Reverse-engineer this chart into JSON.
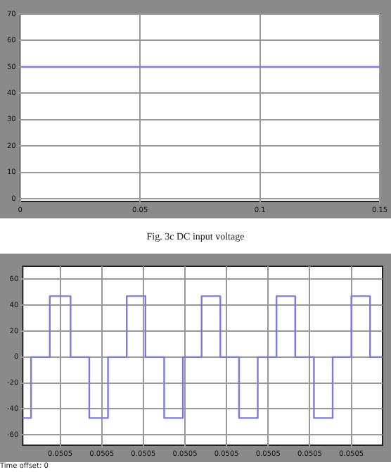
{
  "chart_data": [
    {
      "type": "line",
      "x": [
        0,
        0.15
      ],
      "xlim": [
        0,
        0.15
      ],
      "xticks": [
        0,
        0.05,
        0.1,
        0.15
      ],
      "ylim": [
        -1,
        70
      ],
      "yticks": [
        0,
        10,
        20,
        30,
        40,
        50,
        60,
        70
      ],
      "grid": true,
      "series": [
        {
          "color": "#7a7ae6",
          "values": [
            50,
            50
          ]
        }
      ],
      "annotations": [
        "Fig. 3c DC input voltage"
      ]
    },
    {
      "type": "step",
      "categories": [
        null,
        null,
        null,
        null,
        null,
        null,
        null,
        null,
        null,
        null,
        null,
        null,
        null,
        null,
        null,
        null,
        null,
        null,
        "0.0505",
        null,
        null,
        null,
        null,
        null,
        null,
        null,
        null,
        null,
        null,
        null,
        null,
        null,
        null,
        null,
        null,
        null,
        null,
        null,
        "0.0505",
        null,
        null,
        null,
        null,
        null,
        null,
        null,
        null,
        null,
        null,
        null,
        null,
        null,
        null,
        null,
        null,
        null,
        null,
        null,
        "0.0505",
        null,
        null,
        null,
        null,
        null,
        null,
        null,
        null,
        null,
        null,
        null,
        null,
        null,
        null,
        null,
        null,
        null,
        null,
        null,
        "0.0505",
        null,
        null,
        null,
        null,
        null,
        null,
        null,
        null,
        null,
        null,
        null,
        null,
        null,
        null,
        null,
        null,
        null,
        null,
        null,
        "0.0505",
        null,
        null,
        null,
        null,
        null,
        null,
        null,
        null,
        null,
        null,
        null,
        null,
        null,
        null,
        null,
        null,
        null,
        null,
        null,
        "0.0505",
        null,
        null,
        null,
        null,
        null,
        null,
        null,
        null,
        null,
        null,
        null,
        null,
        null,
        null,
        null,
        null,
        null,
        null,
        null,
        "0.0505",
        null,
        null,
        null,
        null,
        null,
        null,
        null,
        null,
        null,
        null,
        null,
        null,
        null,
        null,
        null,
        null,
        null,
        null,
        null,
        "0.0505",
        null,
        null,
        null,
        null,
        null,
        null,
        null,
        null,
        null,
        null,
        null,
        null,
        null,
        null,
        null
      ],
      "ylim": [
        -68,
        70
      ],
      "yticks": [
        -60,
        -40,
        -20,
        0,
        20,
        40,
        60
      ],
      "grid": true,
      "series": [
        {
          "color": "#7a7ae6",
          "values": [
            -47,
            -47,
            -47,
            -47,
            -47,
            0,
            0,
            0,
            0,
            0,
            0,
            0,
            0,
            0,
            47,
            47,
            47,
            47,
            47,
            47,
            47,
            47,
            47,
            47,
            0,
            0,
            0,
            0,
            0,
            0,
            0,
            0,
            0,
            -47,
            -47,
            -47,
            -47,
            -47,
            -47,
            -47,
            -47,
            -47,
            0,
            0,
            0,
            0,
            0,
            0,
            0,
            0,
            0,
            47,
            47,
            47,
            47,
            47,
            47,
            47,
            47,
            47,
            0,
            0,
            0,
            0,
            0,
            0,
            0,
            0,
            0,
            -47,
            -47,
            -47,
            -47,
            -47,
            -47,
            -47,
            -47,
            -47,
            0,
            0,
            0,
            0,
            0,
            0,
            0,
            0,
            0,
            47,
            47,
            47,
            47,
            47,
            47,
            47,
            47,
            47,
            0,
            0,
            0,
            0,
            0,
            0,
            0,
            0,
            0,
            -47,
            -47,
            -47,
            -47,
            -47,
            -47,
            -47,
            -47,
            -47,
            0,
            0,
            0,
            0,
            0,
            0,
            0,
            0,
            0,
            47,
            47,
            47,
            47,
            47,
            47,
            47,
            47,
            47,
            0,
            0,
            0,
            0,
            0,
            0,
            0,
            0,
            0,
            -47,
            -47,
            -47,
            -47,
            -47,
            -47,
            -47,
            -47,
            -47,
            0,
            0,
            0,
            0,
            0,
            0,
            0,
            0,
            0,
            47,
            47,
            47,
            47,
            47,
            47,
            47,
            47,
            47,
            0,
            0,
            0,
            0,
            0,
            0
          ]
        }
      ],
      "annotations": [
        "Time offset: 0"
      ]
    }
  ]
}
